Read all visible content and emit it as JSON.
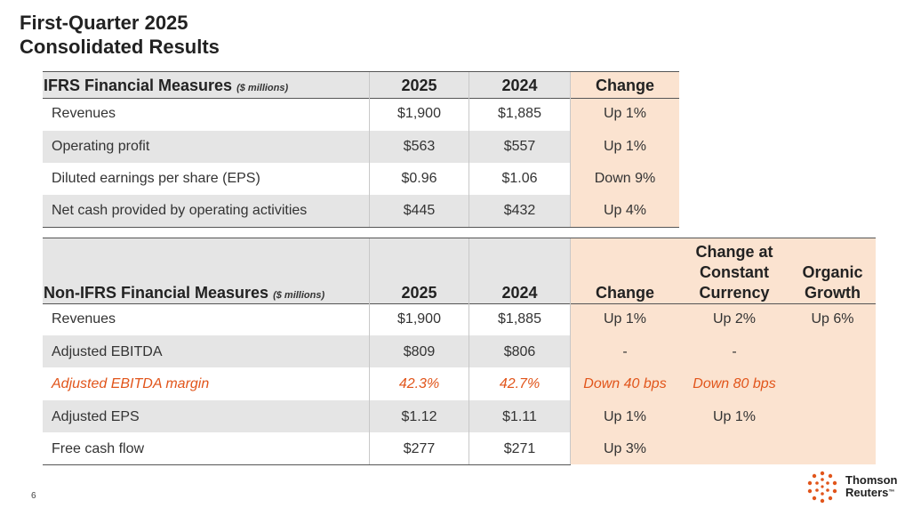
{
  "title_line1": "First-Quarter 2025",
  "title_line2": "Consolidated Results",
  "table1": {
    "header": {
      "label": "IFRS Financial Measures",
      "unit": "($ millions)",
      "col2025": "2025",
      "col2024": "2024",
      "change": "Change"
    },
    "rows": [
      {
        "label": "Revenues",
        "v2025": "$1,900",
        "v2024": "$1,885",
        "change": "Up 1%"
      },
      {
        "label": "Operating profit",
        "v2025": "$563",
        "v2024": "$557",
        "change": "Up 1%"
      },
      {
        "label": "Diluted earnings per share (EPS)",
        "v2025": "$0.96",
        "v2024": "$1.06",
        "change": "Down 9%"
      },
      {
        "label": "Net cash provided by operating activities",
        "v2025": "$445",
        "v2024": "$432",
        "change": "Up 4%"
      }
    ]
  },
  "table2": {
    "header": {
      "label": "Non-IFRS Financial Measures",
      "unit": "($ millions)",
      "col2025": "2025",
      "col2024": "2024",
      "change": "Change",
      "ccy_line1": "Change at",
      "ccy_line2": "Constant",
      "ccy_line3": "Currency",
      "org_line1": "Organic",
      "org_line2": "Growth"
    },
    "rows": [
      {
        "label": "Revenues",
        "v2025": "$1,900",
        "v2024": "$1,885",
        "change": "Up 1%",
        "ccy": "Up 2%",
        "organic": "Up 6%"
      },
      {
        "label": "Adjusted EBITDA",
        "v2025": "$809",
        "v2024": "$806",
        "change": "-",
        "ccy": "-",
        "organic": ""
      },
      {
        "label": "Adjusted EBITDA margin",
        "v2025": "42.3%",
        "v2024": "42.7%",
        "change": "Down 40 bps",
        "ccy": "Down 80 bps",
        "organic": ""
      },
      {
        "label": "Adjusted EPS",
        "v2025": "$1.12",
        "v2024": "$1.11",
        "change": "Up 1%",
        "ccy": "Up 1%",
        "organic": ""
      },
      {
        "label": "Free cash flow",
        "v2025": "$277",
        "v2024": "$271",
        "change": "Up 3%",
        "ccy": "",
        "organic": ""
      }
    ]
  },
  "page_number": "6",
  "logo": {
    "line1": "Thomson",
    "line2": "Reuters",
    "tm": "™"
  },
  "colors": {
    "accent": "#e1551b",
    "peach": "#fbe3d0",
    "band": "#e5e5e5"
  }
}
